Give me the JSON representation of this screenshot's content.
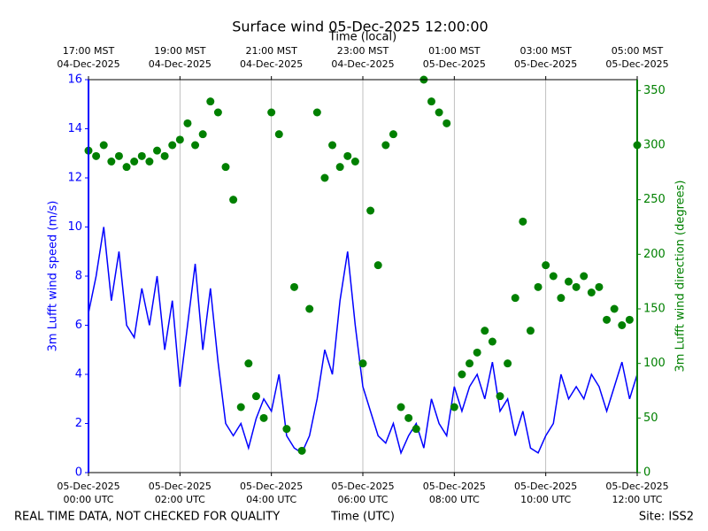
{
  "chart_data": {
    "type": "line",
    "title": "Surface wind 05-Dec-2025 12:00:00",
    "xlabel": "Time (UTC)",
    "x2label": "Time (local)",
    "ylabel": "3m Lufft wind speed (m/s)",
    "y2label": "3m Lufft wind direction (degrees)",
    "footer_left": "REAL TIME DATA, NOT CHECKED FOR QUALITY",
    "footer_right": "Site: ISS2",
    "xlim": [
      "2025-12-05 00:00",
      "2025-12-05 12:00"
    ],
    "xticks": [
      {
        "value": "2025-12-05 00:00",
        "label": [
          "05-Dec-2025",
          "00:00 UTC"
        ]
      },
      {
        "value": "2025-12-05 02:00",
        "label": [
          "05-Dec-2025",
          "02:00 UTC"
        ]
      },
      {
        "value": "2025-12-05 04:00",
        "label": [
          "05-Dec-2025",
          "04:00 UTC"
        ]
      },
      {
        "value": "2025-12-05 06:00",
        "label": [
          "05-Dec-2025",
          "06:00 UTC"
        ]
      },
      {
        "value": "2025-12-05 08:00",
        "label": [
          "05-Dec-2025",
          "08:00 UTC"
        ]
      },
      {
        "value": "2025-12-05 10:00",
        "label": [
          "05-Dec-2025",
          "10:00 UTC"
        ]
      },
      {
        "value": "2025-12-05 12:00",
        "label": [
          "05-Dec-2025",
          "12:00 UTC"
        ]
      }
    ],
    "x2ticks": [
      {
        "value": "2025-12-05 00:00",
        "label": [
          "17:00 MST",
          "04-Dec-2025"
        ]
      },
      {
        "value": "2025-12-05 02:00",
        "label": [
          "19:00 MST",
          "04-Dec-2025"
        ]
      },
      {
        "value": "2025-12-05 04:00",
        "label": [
          "21:00 MST",
          "04-Dec-2025"
        ]
      },
      {
        "value": "2025-12-05 06:00",
        "label": [
          "23:00 MST",
          "04-Dec-2025"
        ]
      },
      {
        "value": "2025-12-05 08:00",
        "label": [
          "01:00 MST",
          "05-Dec-2025"
        ]
      },
      {
        "value": "2025-12-05 10:00",
        "label": [
          "03:00 MST",
          "05-Dec-2025"
        ]
      },
      {
        "value": "2025-12-05 12:00",
        "label": [
          "05:00 MST",
          "05-Dec-2025"
        ]
      }
    ],
    "ylim": [
      0,
      16
    ],
    "yticks": [
      0,
      2,
      4,
      6,
      8,
      10,
      12,
      14,
      16
    ],
    "y2lim": [
      0,
      360
    ],
    "y2ticks": [
      0,
      50,
      100,
      150,
      200,
      250,
      300,
      350
    ],
    "grid": "x",
    "x": [
      "2025-12-05 00:00",
      "2025-12-05 00:10",
      "2025-12-05 00:20",
      "2025-12-05 00:30",
      "2025-12-05 00:40",
      "2025-12-05 00:50",
      "2025-12-05 01:00",
      "2025-12-05 01:10",
      "2025-12-05 01:20",
      "2025-12-05 01:30",
      "2025-12-05 01:40",
      "2025-12-05 01:50",
      "2025-12-05 02:00",
      "2025-12-05 02:10",
      "2025-12-05 02:20",
      "2025-12-05 02:30",
      "2025-12-05 02:40",
      "2025-12-05 02:50",
      "2025-12-05 03:00",
      "2025-12-05 03:10",
      "2025-12-05 03:20",
      "2025-12-05 03:30",
      "2025-12-05 03:40",
      "2025-12-05 03:50",
      "2025-12-05 04:00",
      "2025-12-05 04:10",
      "2025-12-05 04:20",
      "2025-12-05 04:30",
      "2025-12-05 04:40",
      "2025-12-05 04:50",
      "2025-12-05 05:00",
      "2025-12-05 05:10",
      "2025-12-05 05:20",
      "2025-12-05 05:30",
      "2025-12-05 05:40",
      "2025-12-05 05:50",
      "2025-12-05 06:00",
      "2025-12-05 06:10",
      "2025-12-05 06:20",
      "2025-12-05 06:30",
      "2025-12-05 06:40",
      "2025-12-05 06:50",
      "2025-12-05 07:00",
      "2025-12-05 07:10",
      "2025-12-05 07:20",
      "2025-12-05 07:30",
      "2025-12-05 07:40",
      "2025-12-05 07:50",
      "2025-12-05 08:00",
      "2025-12-05 08:10",
      "2025-12-05 08:20",
      "2025-12-05 08:30",
      "2025-12-05 08:40",
      "2025-12-05 08:50",
      "2025-12-05 09:00",
      "2025-12-05 09:10",
      "2025-12-05 09:20",
      "2025-12-05 09:30",
      "2025-12-05 09:40",
      "2025-12-05 09:50",
      "2025-12-05 10:00",
      "2025-12-05 10:10",
      "2025-12-05 10:20",
      "2025-12-05 10:30",
      "2025-12-05 10:40",
      "2025-12-05 10:50",
      "2025-12-05 11:00",
      "2025-12-05 11:10",
      "2025-12-05 11:20",
      "2025-12-05 11:30",
      "2025-12-05 11:40",
      "2025-12-05 11:50",
      "2025-12-05 12:00"
    ],
    "series": [
      {
        "type": "line",
        "color": "#0000ff",
        "values": [
          6.5,
          8,
          10,
          7,
          9,
          6,
          5.5,
          7.5,
          6,
          8,
          5,
          7,
          3.5,
          6,
          8.5,
          5,
          7.5,
          4.5,
          2,
          1.5,
          2,
          1,
          2.2,
          3,
          2.5,
          4,
          1.5,
          1,
          0.8,
          1.5,
          3,
          5,
          4,
          7,
          9,
          6,
          3.5,
          2.5,
          1.5,
          1.2,
          2,
          0.8,
          1.5,
          2,
          1,
          3,
          2,
          1.5,
          3.5,
          2.5,
          3.5,
          4,
          3,
          4.5,
          2.5,
          3,
          1.5,
          2.5,
          1,
          0.8,
          1.5,
          2,
          4,
          3,
          3.5,
          3,
          4,
          3.5,
          2.5,
          3.5,
          4.5,
          3,
          4
        ]
      },
      {
        "type": "scatter",
        "color": "#008000",
        "axis": "y2",
        "values": [
          295,
          290,
          300,
          285,
          290,
          280,
          285,
          290,
          285,
          295,
          290,
          300,
          305,
          320,
          300,
          310,
          340,
          330,
          280,
          250,
          60,
          100,
          70,
          50,
          330,
          310,
          40,
          170,
          20,
          150,
          330,
          270,
          300,
          280,
          290,
          285,
          100,
          240,
          190,
          300,
          310,
          60,
          50,
          40,
          360,
          340,
          330,
          320,
          60,
          90,
          100,
          110,
          130,
          120,
          70,
          100,
          160,
          230,
          130,
          170,
          190,
          180,
          160,
          175,
          170,
          180,
          165,
          170,
          140,
          150,
          135,
          140,
          300
        ]
      }
    ]
  }
}
